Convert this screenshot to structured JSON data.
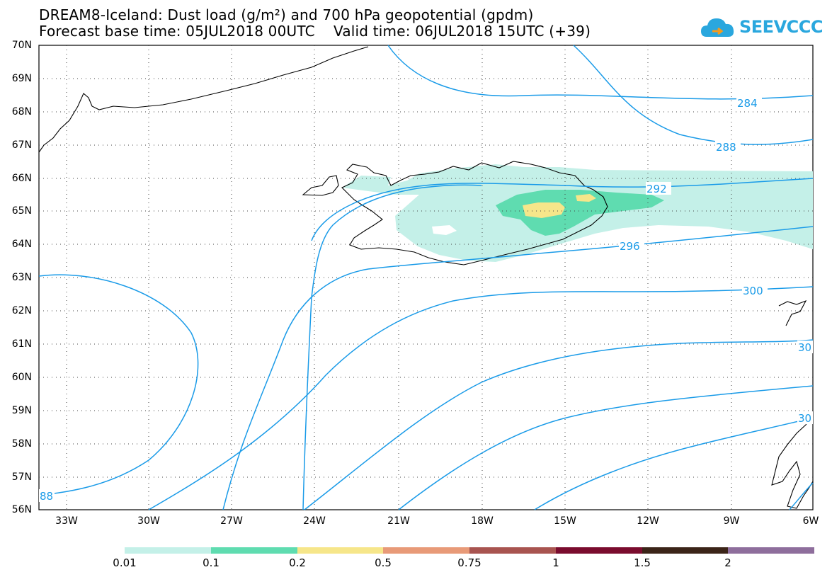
{
  "title_line1": "DREAM8-Iceland: Dust load (g/m²) and 700 hPa geopotential (gpdm)",
  "title_line2": "Forecast base time: 05JUL2018 00UTC    Valid time: 06JUL2018 15UTC (+39)",
  "logo_text": "SEEVCCC",
  "lat_labels": [
    "70N",
    "69N",
    "68N",
    "67N",
    "66N",
    "65N",
    "64N",
    "63N",
    "62N",
    "61N",
    "60N",
    "59N",
    "58N",
    "57N",
    "56N"
  ],
  "lon_labels": [
    "33W",
    "30W",
    "27W",
    "24W",
    "21W",
    "18W",
    "15W",
    "12W",
    "9W",
    "6W"
  ],
  "contour_labels": [
    "284",
    "288",
    "292",
    "296",
    "300",
    "30",
    "30",
    "88"
  ],
  "colorbar": {
    "labels": [
      "0.01",
      "0.1",
      "0.2",
      "0.5",
      "0.75",
      "1",
      "1.5",
      "2"
    ],
    "colors": [
      "#c4f0e8",
      "#5fdcb0",
      "#f6e68a",
      "#e89a78",
      "#a85450",
      "#7a0c2e",
      "#3b2418",
      "#8e6e9c"
    ]
  },
  "colors": {
    "contour": "#1a9be8",
    "coast": "#000000"
  }
}
